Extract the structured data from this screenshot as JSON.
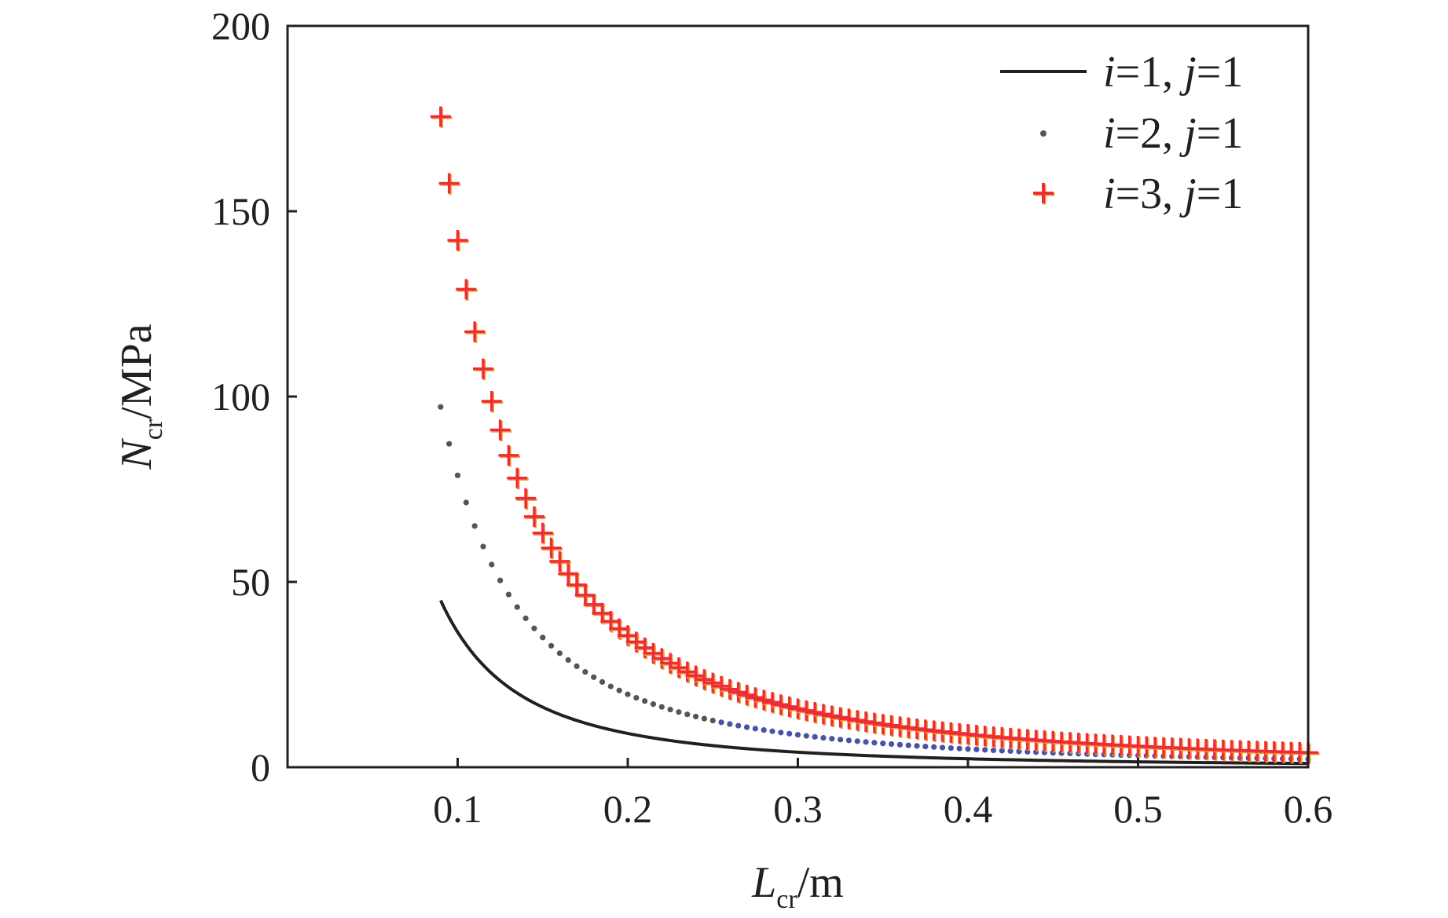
{
  "chart_data": {
    "type": "scatter",
    "xlabel": {
      "main": "L",
      "sub": "cr",
      "unit": "/m"
    },
    "ylabel": {
      "main": "N",
      "sub": "cr",
      "unit": "/MPa"
    },
    "xlim": [
      0,
      0.6
    ],
    "ylim": [
      0,
      200
    ],
    "xticks": [
      0.1,
      0.2,
      0.3,
      0.4,
      0.5,
      0.6
    ],
    "xtick_labels": [
      "0.1",
      "0.2",
      "0.3",
      "0.4",
      "0.5",
      "0.6"
    ],
    "yticks": [
      0,
      50,
      100,
      150,
      200
    ],
    "ytick_labels": [
      "0",
      "50",
      "100",
      "150",
      "200"
    ],
    "grid": false,
    "legend_position": "top-right",
    "series": [
      {
        "name": "i=1, j=1",
        "i": "1",
        "j": "1",
        "style": "line",
        "color": "#231f20",
        "coefficient": 0.3645,
        "x_start": 0.09,
        "x_end": 0.6
      },
      {
        "name": "i=2, j=1",
        "i": "2",
        "j": "1",
        "style": "dots",
        "color": "#555555",
        "color_tail": "#4a52a8",
        "coefficient": 0.7874,
        "x_start": 0.09,
        "x_end": 0.6,
        "x_step": 0.005
      },
      {
        "name": "i=3, j=1",
        "i": "3",
        "j": "1",
        "style": "plus",
        "color": "#ee2b3b",
        "color_alt": "#f2a12b",
        "coefficient": 1.4217,
        "x_start": 0.09,
        "x_end": 0.6,
        "x_step": 0.005
      }
    ]
  }
}
